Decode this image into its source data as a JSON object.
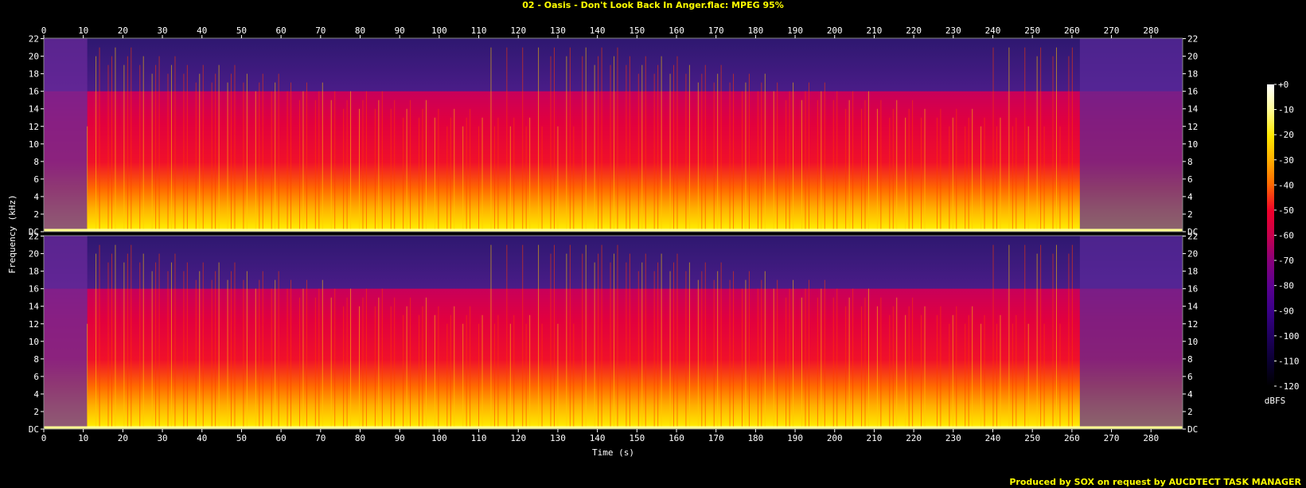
{
  "title": "02 - Oasis - Don't Look Back In Anger.flac: MPEG 95%",
  "footer": "Produced by SOX on request by AUCDTECT TASK MANAGER",
  "chart_data": {
    "type": "heatmap",
    "title": "02 - Oasis - Don't Look Back In Anger.flac: MPEG 95%",
    "xlabel": "Time (s)",
    "ylabel": "Frequency (kHz)",
    "xlim": [
      0,
      288
    ],
    "ylim_khz": [
      0,
      22.05
    ],
    "x_ticks": [
      0,
      10,
      20,
      30,
      40,
      50,
      60,
      70,
      80,
      90,
      100,
      110,
      120,
      130,
      140,
      150,
      160,
      170,
      180,
      190,
      200,
      210,
      220,
      230,
      240,
      250,
      260,
      270,
      280
    ],
    "y_tick_labels": [
      "DC",
      "2",
      "4",
      "6",
      "8",
      "10",
      "12",
      "14",
      "16",
      "18",
      "20",
      "22"
    ],
    "y_ticks": [
      0,
      2,
      4,
      6,
      8,
      10,
      12,
      14,
      16,
      18,
      20,
      22
    ],
    "channels": 2,
    "lowpass_cutoff_khz": 16,
    "colorbar": {
      "label": "dBFS",
      "range": [
        -120,
        0
      ],
      "ticks": [
        0,
        -10,
        -20,
        -30,
        -40,
        -50,
        -60,
        -70,
        -80,
        -90,
        -100,
        -110,
        -120
      ],
      "tick_labels": [
        "+0",
        "-10",
        "-20",
        "-30",
        "-40",
        "-50",
        "-60",
        "-70",
        "-80",
        "-90",
        "-100",
        "-110",
        "-120"
      ],
      "colors": [
        "#ffffff",
        "#fffc9c",
        "#ffe800",
        "#ffaf00",
        "#ff6a00",
        "#f0002a",
        "#c8004c",
        "#8a0078",
        "#5a0090",
        "#3a0088",
        "#200060",
        "#0a0030",
        "#000000"
      ]
    },
    "colors": {
      "background": "#000000",
      "above_cutoff": "#3a1a80",
      "upper_band": "#d8004a",
      "mid_band": "#ff3a00",
      "low_band": "#ffc800",
      "baseline": "#ffff90",
      "intro_fill": "#6a2a9a",
      "outro_fill": "#5a2a9a",
      "text": "#ffffff",
      "accent_text": "#ffff00"
    }
  }
}
